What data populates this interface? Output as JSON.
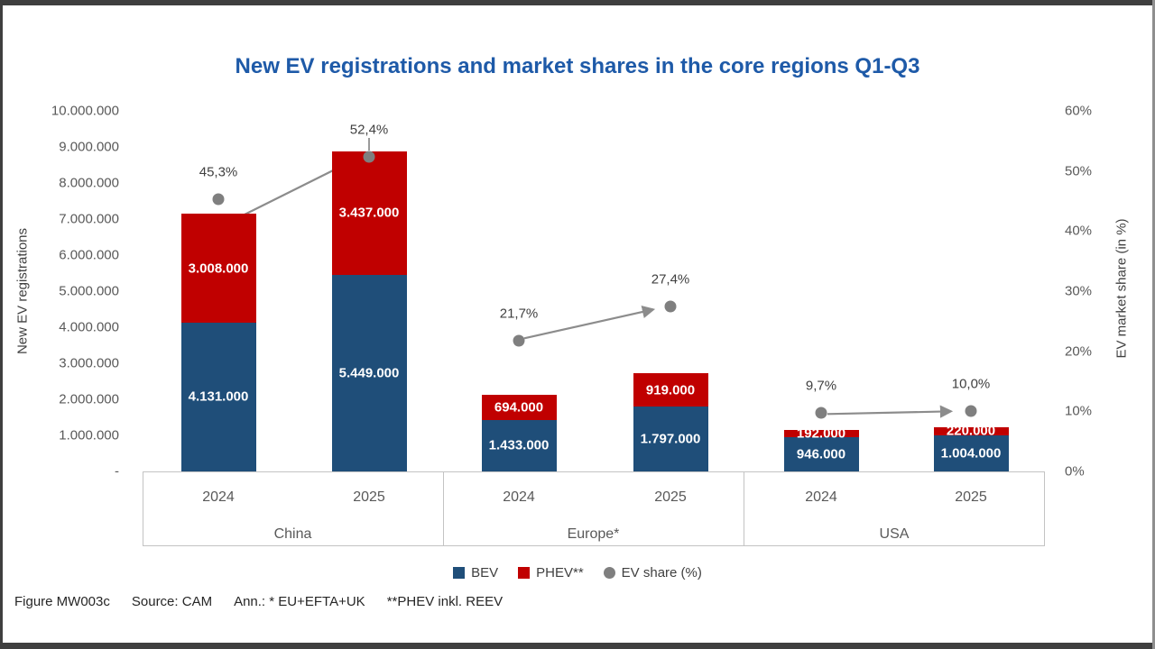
{
  "slide": {
    "title": "New EV registrations and market shares in the core regions Q1-Q3"
  },
  "chart_data": {
    "type": "bar",
    "stacked": true,
    "title": "New EV registrations and market shares in the core regions Q1-Q3",
    "left_axis": {
      "label": "New EV registrations",
      "max": 10000000,
      "ticks": [
        "10.000.000",
        "9.000.000",
        "8.000.000",
        "7.000.000",
        "6.000.000",
        "5.000.000",
        "4.000.000",
        "3.000.000",
        "2.000.000",
        "1.000.000",
        "-"
      ]
    },
    "right_axis": {
      "label": "EV market share (in %)",
      "max": 60,
      "ticks": [
        "60%",
        "50%",
        "40%",
        "30%",
        "20%",
        "10%",
        "0%"
      ]
    },
    "regions": [
      {
        "name": "China",
        "bars": [
          {
            "year": "2024",
            "bev": 4131000,
            "bev_label": "4.131.000",
            "phev": 3008000,
            "phev_label": "3.008.000",
            "share": 45.3,
            "share_label": "45,3%"
          },
          {
            "year": "2025",
            "bev": 5449000,
            "bev_label": "5.449.000",
            "phev": 3437000,
            "phev_label": "3.437.000",
            "share": 52.4,
            "share_label": "52,4%",
            "leader": true
          }
        ]
      },
      {
        "name": "Europe*",
        "bars": [
          {
            "year": "2024",
            "bev": 1433000,
            "bev_label": "1.433.000",
            "phev": 694000,
            "phev_label": "694.000",
            "share": 21.7,
            "share_label": "21,7%"
          },
          {
            "year": "2025",
            "bev": 1797000,
            "bev_label": "1.797.000",
            "phev": 919000,
            "phev_label": "919.000",
            "share": 27.4,
            "share_label": "27,4%"
          }
        ]
      },
      {
        "name": "USA",
        "bars": [
          {
            "year": "2024",
            "bev": 946000,
            "bev_label": "946.000",
            "phev": 192000,
            "phev_label": "192.000",
            "share": 9.7,
            "share_label": "9,7%"
          },
          {
            "year": "2025",
            "bev": 1004000,
            "bev_label": "1.004.000",
            "phev": 220000,
            "phev_label": "220.000",
            "share": 10.0,
            "share_label": "10,0%"
          }
        ]
      }
    ],
    "legend": [
      {
        "label": "BEV",
        "marker": "square",
        "color": "#1F4E79"
      },
      {
        "label": "PHEV**",
        "marker": "square",
        "color": "#C00000"
      },
      {
        "label": "EV share (%)",
        "marker": "circle",
        "color": "#7F7F7F"
      }
    ]
  },
  "colors": {
    "bev": "#1F4E79",
    "phev": "#C00000",
    "share_dot": "#7F7F7F",
    "arrow": "#8C8C8C",
    "title": "#1E5AA8"
  },
  "footer": {
    "items": [
      "Figure MW003c",
      "Source: CAM",
      "Ann.: * EU+EFTA+UK",
      "**PHEV inkl. REEV"
    ]
  }
}
